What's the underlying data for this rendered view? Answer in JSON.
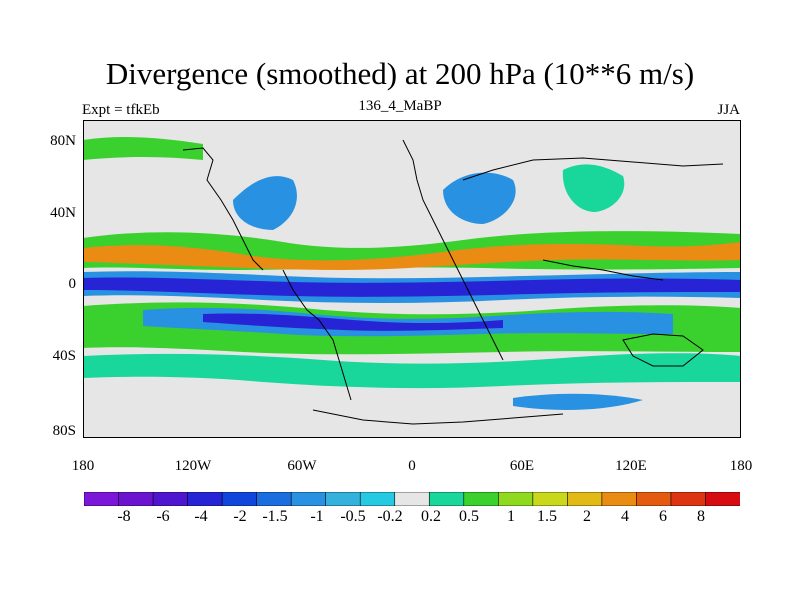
{
  "title": "Divergence (smoothed) at 200 hPa (10**6 m/s)",
  "subtitle_left": "Expt = tfkEb",
  "subtitle_center": "136_4_MaBP",
  "subtitle_right": "JJA",
  "axes": {
    "x_ticks": [
      "180",
      "120W",
      "60W",
      "0",
      "60E",
      "120E",
      "180"
    ],
    "y_ticks": [
      "80N",
      "40N",
      "0",
      "40S",
      "80S"
    ]
  },
  "colorbar": {
    "labels": [
      "-8",
      "-6",
      "-4",
      "-2",
      "-1.5",
      "-1",
      "-0.5",
      "-0.2",
      "0.2",
      "0.5",
      "1",
      "1.5",
      "2",
      "4",
      "6",
      "8"
    ],
    "colors": [
      "#7a17d9",
      "#6a14d0",
      "#4f16cf",
      "#2724d6",
      "#1146dd",
      "#1b6ee0",
      "#2891e1",
      "#35b1dd",
      "#25c9e2",
      "#e6e6e6",
      "#19d79b",
      "#3ad12f",
      "#8fd91e",
      "#c9d81a",
      "#e2b915",
      "#ea8c14",
      "#e45b10",
      "#dd3411",
      "#d70c10"
    ]
  }
}
